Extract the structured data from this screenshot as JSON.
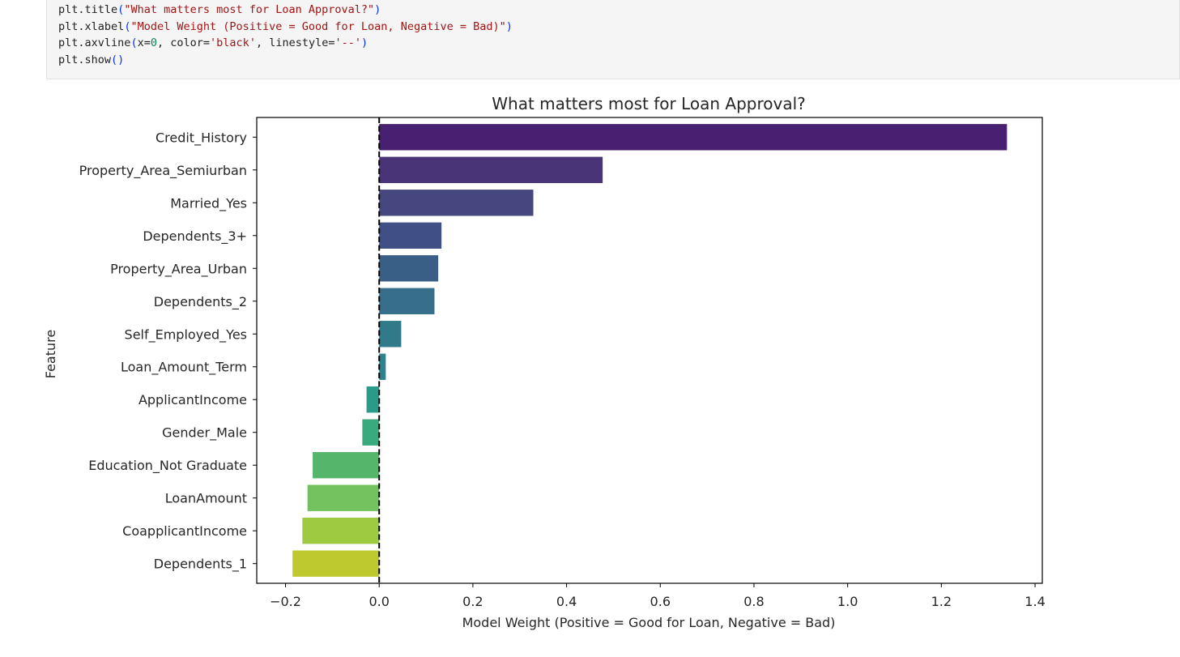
{
  "code": {
    "lines": [
      [
        {
          "t": "plt",
          "c": "name"
        },
        {
          "t": ".",
          "c": "op"
        },
        {
          "t": "title",
          "c": "name"
        },
        {
          "t": "(",
          "c": "paren"
        },
        {
          "t": "\"What matters most for Loan Approval?\"",
          "c": "str"
        },
        {
          "t": ")",
          "c": "paren"
        }
      ],
      [
        {
          "t": "plt",
          "c": "name"
        },
        {
          "t": ".",
          "c": "op"
        },
        {
          "t": "xlabel",
          "c": "name"
        },
        {
          "t": "(",
          "c": "paren"
        },
        {
          "t": "\"Model Weight (Positive = Good for Loan, Negative = Bad)\"",
          "c": "str"
        },
        {
          "t": ")",
          "c": "paren"
        }
      ],
      [
        {
          "t": "plt",
          "c": "name"
        },
        {
          "t": ".",
          "c": "op"
        },
        {
          "t": "axvline",
          "c": "name"
        },
        {
          "t": "(",
          "c": "paren"
        },
        {
          "t": "x",
          "c": "name"
        },
        {
          "t": "=",
          "c": "op"
        },
        {
          "t": "0",
          "c": "num"
        },
        {
          "t": ", ",
          "c": "op"
        },
        {
          "t": "color",
          "c": "name"
        },
        {
          "t": "=",
          "c": "op"
        },
        {
          "t": "'black'",
          "c": "str"
        },
        {
          "t": ", ",
          "c": "op"
        },
        {
          "t": "linestyle",
          "c": "name"
        },
        {
          "t": "=",
          "c": "op"
        },
        {
          "t": "'--'",
          "c": "str"
        },
        {
          "t": ")",
          "c": "paren"
        }
      ],
      [
        {
          "t": "plt",
          "c": "name"
        },
        {
          "t": ".",
          "c": "op"
        },
        {
          "t": "show",
          "c": "name"
        },
        {
          "t": "()",
          "c": "paren"
        }
      ]
    ]
  },
  "chart_data": {
    "type": "bar",
    "orientation": "horizontal",
    "title": "What matters most for Loan Approval?",
    "xlabel": "Model Weight (Positive = Good for Loan, Negative = Bad)",
    "ylabel": "Feature",
    "xlim": [
      -0.2614,
      1.4155
    ],
    "xticks": [
      -0.2,
      0.0,
      0.2,
      0.4,
      0.6,
      0.8,
      1.0,
      1.2,
      1.4
    ],
    "xtick_labels": [
      "−0.2",
      "0.0",
      "0.2",
      "0.4",
      "0.6",
      "0.8",
      "1.0",
      "1.2",
      "1.4"
    ],
    "reference_line": {
      "x": 0,
      "color": "#000000",
      "linestyle": "dashed"
    },
    "grid": false,
    "categories": [
      "Credit_History",
      "Property_Area_Semiurban",
      "Married_Yes",
      "Dependents_3+",
      "Property_Area_Urban",
      "Dependents_2",
      "Self_Employed_Yes",
      "Loan_Amount_Term",
      "ApplicantIncome",
      "Gender_Male",
      "Education_Not Graduate",
      "LoanAmount",
      "CoapplicantIncome",
      "Dependents_1"
    ],
    "values": [
      1.34,
      0.477,
      0.329,
      0.133,
      0.126,
      0.118,
      0.047,
      0.014,
      -0.027,
      -0.036,
      -0.142,
      -0.153,
      -0.164,
      -0.185
    ],
    "colors": [
      "#482071",
      "#483477",
      "#47477f",
      "#404f86",
      "#3a5f87",
      "#366e8b",
      "#307a8a",
      "#2b838e",
      "#2a9a89",
      "#3aa97d",
      "#55b56b",
      "#74c160",
      "#9dca41",
      "#bec92f"
    ]
  }
}
